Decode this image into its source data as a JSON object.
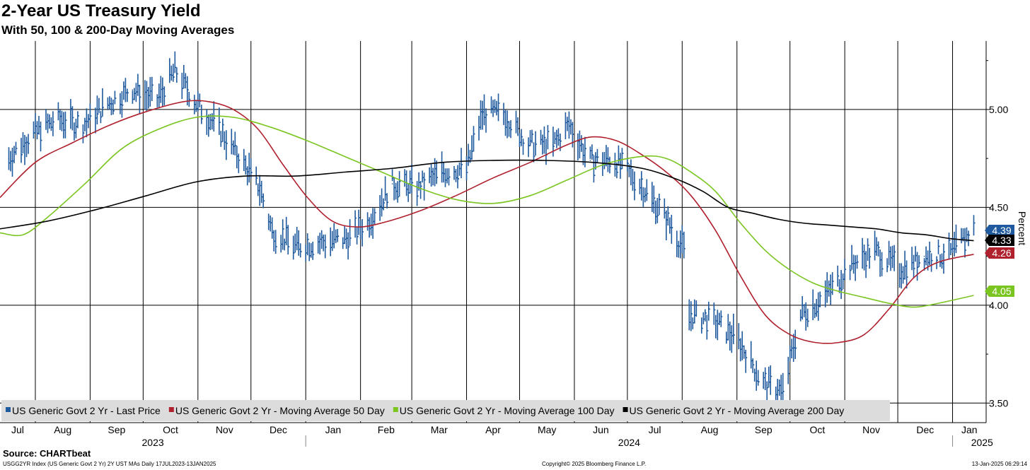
{
  "header": {
    "title": "2-Year US Treasury Yield",
    "subtitle": "With 50, 100 & 200-Day Moving Averages"
  },
  "footer": {
    "source": "Source: CHARTbeat",
    "left": "USGG2YR Index (US Generic Govt 2 Yr) 2Y UST MAs  Daily 17JUL2023-13JAN2025",
    "center": "Copyright© 2025 Bloomberg Finance L.P.",
    "right": "13-Jan-2025 06:29:14"
  },
  "chart_data": {
    "type": "line",
    "title": "2-Year US Treasury Yield",
    "subtitle": "With 50, 100 & 200-Day Moving Averages",
    "ylabel": "Percent",
    "ylim": [
      3.4,
      5.35
    ],
    "yticks": [
      3.5,
      4.0,
      4.5,
      5.0
    ],
    "ytick_labels": [
      "3.50",
      "4.00",
      "4.50",
      "5.00"
    ],
    "xlim": [
      "2023-07-12",
      "2025-01-20"
    ],
    "x_months": [
      {
        "date": "2023-07-01",
        "label": "Jul"
      },
      {
        "date": "2023-08-01",
        "label": "Aug"
      },
      {
        "date": "2023-09-01",
        "label": "Sep"
      },
      {
        "date": "2023-10-01",
        "label": "Oct"
      },
      {
        "date": "2023-11-01",
        "label": "Nov"
      },
      {
        "date": "2023-12-01",
        "label": "Dec"
      },
      {
        "date": "2024-01-01",
        "label": "Jan"
      },
      {
        "date": "2024-02-01",
        "label": "Feb"
      },
      {
        "date": "2024-03-01",
        "label": "Mar"
      },
      {
        "date": "2024-04-01",
        "label": "Apr"
      },
      {
        "date": "2024-05-01",
        "label": "May"
      },
      {
        "date": "2024-06-01",
        "label": "Jun"
      },
      {
        "date": "2024-07-01",
        "label": "Jul"
      },
      {
        "date": "2024-08-01",
        "label": "Aug"
      },
      {
        "date": "2024-09-01",
        "label": "Sep"
      },
      {
        "date": "2024-10-01",
        "label": "Oct"
      },
      {
        "date": "2024-11-01",
        "label": "Nov"
      },
      {
        "date": "2024-12-01",
        "label": "Dec"
      },
      {
        "date": "2025-01-01",
        "label": "Jan"
      }
    ],
    "x_years": [
      {
        "date": "2023-07-01",
        "label": "2023"
      },
      {
        "date": "2024-01-01",
        "label": "2024"
      },
      {
        "date": "2025-01-01",
        "label": "2025"
      }
    ],
    "grid": true,
    "legend_position": "bottom-left",
    "series": [
      {
        "name": "US Generic Govt 2 Yr - Last Price",
        "style": "bars",
        "color": "#1f5a9e",
        "tag_value": "4.39",
        "x": [
          "2023-07-17",
          "2023-07-31",
          "2023-08-14",
          "2023-08-28",
          "2023-09-11",
          "2023-09-25",
          "2023-10-09",
          "2023-10-19",
          "2023-11-01",
          "2023-11-13",
          "2023-11-27",
          "2023-12-06",
          "2023-12-13",
          "2023-12-27",
          "2024-01-10",
          "2024-01-24",
          "2024-02-05",
          "2024-02-19",
          "2024-03-04",
          "2024-03-18",
          "2024-04-01",
          "2024-04-10",
          "2024-04-22",
          "2024-05-06",
          "2024-05-20",
          "2024-05-29",
          "2024-06-10",
          "2024-06-24",
          "2024-07-08",
          "2024-07-22",
          "2024-08-02",
          "2024-08-05",
          "2024-08-19",
          "2024-09-02",
          "2024-09-16",
          "2024-09-27",
          "2024-10-07",
          "2024-10-21",
          "2024-11-04",
          "2024-11-18",
          "2024-12-02",
          "2024-12-16",
          "2024-12-30",
          "2025-01-13"
        ],
        "y": [
          4.75,
          4.88,
          4.95,
          4.92,
          5.03,
          5.1,
          5.05,
          5.2,
          5.02,
          4.9,
          4.72,
          4.6,
          4.38,
          4.3,
          4.32,
          4.34,
          4.42,
          4.62,
          4.6,
          4.68,
          4.7,
          4.98,
          4.98,
          4.82,
          4.82,
          4.92,
          4.74,
          4.74,
          4.62,
          4.46,
          4.28,
          3.95,
          3.92,
          3.82,
          3.6,
          3.56,
          3.95,
          4.05,
          4.2,
          4.28,
          4.18,
          4.25,
          4.26,
          4.39
        ]
      },
      {
        "name": "US Generic Govt 2 Yr - Moving Average 50 Day",
        "style": "line",
        "color": "#b0212e",
        "tag_value": "4.26",
        "x": [
          "2023-07-12",
          "2023-08-01",
          "2023-08-22",
          "2023-09-12",
          "2023-10-03",
          "2023-10-24",
          "2023-11-07",
          "2023-11-21",
          "2023-12-05",
          "2023-12-19",
          "2024-01-02",
          "2024-01-16",
          "2024-01-30",
          "2024-02-13",
          "2024-03-05",
          "2024-03-26",
          "2024-04-16",
          "2024-05-07",
          "2024-05-28",
          "2024-06-11",
          "2024-06-25",
          "2024-07-09",
          "2024-07-23",
          "2024-08-06",
          "2024-08-20",
          "2024-09-03",
          "2024-09-17",
          "2024-10-01",
          "2024-10-15",
          "2024-10-29",
          "2024-11-12",
          "2024-11-26",
          "2024-12-10",
          "2024-12-24",
          "2025-01-13"
        ],
        "y": [
          4.55,
          4.73,
          4.83,
          4.92,
          4.99,
          5.04,
          5.04,
          5.0,
          4.9,
          4.72,
          4.55,
          4.43,
          4.4,
          4.42,
          4.48,
          4.56,
          4.65,
          4.73,
          4.82,
          4.86,
          4.84,
          4.77,
          4.68,
          4.56,
          4.38,
          4.15,
          3.95,
          3.85,
          3.81,
          3.81,
          3.85,
          3.98,
          4.14,
          4.22,
          4.26
        ]
      },
      {
        "name": "US Generic Govt 2 Yr - Moving Average 100 Day",
        "style": "line",
        "color": "#7ac520",
        "tag_value": "4.05",
        "x": [
          "2023-07-12",
          "2023-07-25",
          "2023-08-08",
          "2023-08-29",
          "2023-09-19",
          "2023-10-10",
          "2023-10-31",
          "2023-11-21",
          "2023-12-12",
          "2024-01-02",
          "2024-01-23",
          "2024-02-13",
          "2024-03-05",
          "2024-03-26",
          "2024-04-16",
          "2024-05-07",
          "2024-05-28",
          "2024-06-18",
          "2024-07-09",
          "2024-07-23",
          "2024-08-06",
          "2024-08-20",
          "2024-09-03",
          "2024-09-17",
          "2024-10-01",
          "2024-10-15",
          "2024-10-29",
          "2024-11-12",
          "2024-11-26",
          "2024-12-10",
          "2024-12-24",
          "2025-01-13"
        ],
        "y": [
          4.37,
          4.36,
          4.45,
          4.62,
          4.8,
          4.9,
          4.96,
          4.96,
          4.91,
          4.84,
          4.76,
          4.68,
          4.6,
          4.54,
          4.52,
          4.56,
          4.64,
          4.72,
          4.76,
          4.75,
          4.68,
          4.58,
          4.42,
          4.28,
          4.18,
          4.11,
          4.07,
          4.04,
          4.01,
          3.99,
          4.01,
          4.05
        ]
      },
      {
        "name": "US Generic Govt 2 Yr - Moving Average 200 Day",
        "style": "line",
        "color": "#000000",
        "tag_value": "4.33",
        "x": [
          "2023-07-12",
          "2023-08-08",
          "2023-09-05",
          "2023-10-03",
          "2023-10-31",
          "2023-11-28",
          "2023-12-26",
          "2024-01-23",
          "2024-02-20",
          "2024-03-19",
          "2024-04-16",
          "2024-05-14",
          "2024-06-11",
          "2024-07-09",
          "2024-07-30",
          "2024-08-13",
          "2024-08-27",
          "2024-09-10",
          "2024-09-24",
          "2024-10-08",
          "2024-10-22",
          "2024-11-05",
          "2024-11-19",
          "2024-12-03",
          "2024-12-17",
          "2024-12-31",
          "2025-01-13"
        ],
        "y": [
          4.39,
          4.43,
          4.49,
          4.56,
          4.63,
          4.66,
          4.66,
          4.68,
          4.7,
          4.73,
          4.74,
          4.74,
          4.73,
          4.7,
          4.64,
          4.58,
          4.5,
          4.47,
          4.44,
          4.42,
          4.41,
          4.4,
          4.39,
          4.37,
          4.36,
          4.34,
          4.33
        ]
      }
    ]
  }
}
